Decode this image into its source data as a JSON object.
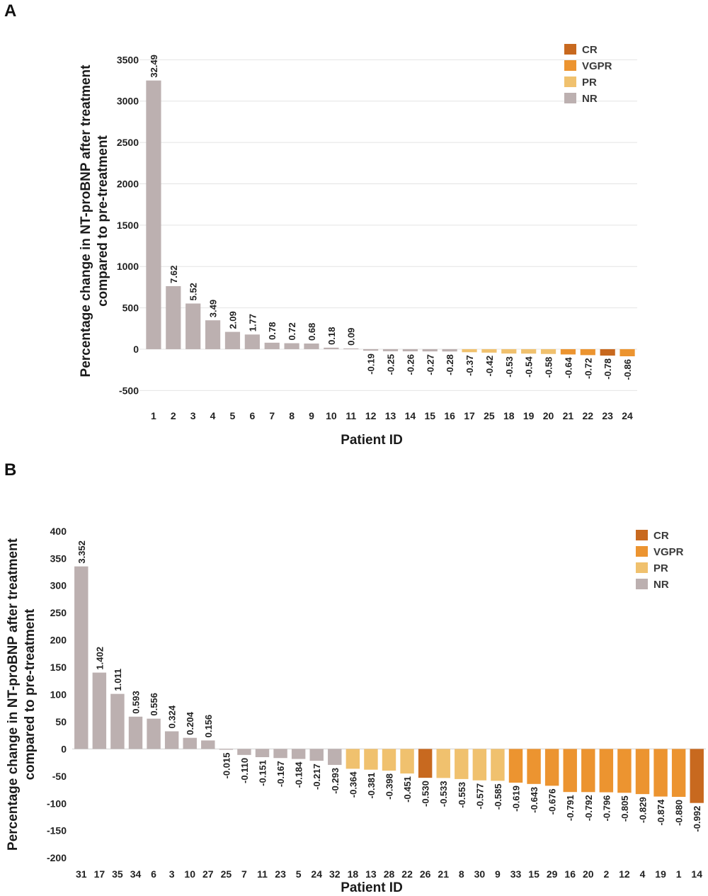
{
  "panels": [
    {
      "letter": "A"
    },
    {
      "letter": "B"
    }
  ],
  "colors": {
    "CR": "#c8691f",
    "VGPR": "#ec9430",
    "PR": "#f0c16e",
    "NR": "#bcb0b0"
  },
  "chart_data": [
    {
      "type": "bar",
      "ylabel": "Percentage change in NT-proBNP after treatment compared to pre-treatment",
      "ylabel_lines": [
        "Percentage change in NT-proBNP after treatment",
        "compared to pre-treatment"
      ],
      "xlabel": "Patient ID",
      "ylim": [
        -600,
        3700
      ],
      "yticks": [
        -500,
        0,
        500,
        1000,
        1500,
        2000,
        2500,
        3000,
        3500
      ],
      "grid": true,
      "legend_position": "top-right",
      "legend": [
        "CR",
        "VGPR",
        "PR",
        "NR"
      ],
      "categories": [
        "1",
        "2",
        "3",
        "4",
        "5",
        "6",
        "7",
        "8",
        "9",
        "10",
        "11",
        "12",
        "13",
        "14",
        "15",
        "16",
        "17",
        "25",
        "18",
        "19",
        "20",
        "21",
        "22",
        "23",
        "24"
      ],
      "values": [
        3249,
        762,
        552,
        349,
        209,
        177,
        78,
        72,
        68,
        18,
        9,
        -19,
        -25,
        -26,
        -27,
        -28,
        -37,
        -42,
        -53,
        -54,
        -58,
        -64,
        -72,
        -78,
        -86
      ],
      "labels": [
        "32.49",
        "7.62",
        "5.52",
        "3.49",
        "2.09",
        "1.77",
        "0.78",
        "0.72",
        "0.68",
        "0.18",
        "0.09",
        "-0.19",
        "-0.25",
        "-0.26",
        "-0.27",
        "-0.28",
        "-0.37",
        "-0.42",
        "-0.53",
        "-0.54",
        "-0.58",
        "-0.64",
        "-0.72",
        "-0.78",
        "-0.86"
      ],
      "response": [
        "NR",
        "NR",
        "NR",
        "NR",
        "NR",
        "NR",
        "NR",
        "NR",
        "NR",
        "NR",
        "NR",
        "NR",
        "NR",
        "NR",
        "NR",
        "NR",
        "PR",
        "PR",
        "PR",
        "PR",
        "PR",
        "VGPR",
        "VGPR",
        "CR",
        "VGPR"
      ]
    },
    {
      "type": "bar",
      "ylabel": "Percentage change in NT-proBNP after treatment compared to pre-treatment",
      "ylabel_lines": [
        "Percentage change in NT-proBNP after treatment",
        "compared to pre-treatment"
      ],
      "xlabel": "Patient ID",
      "ylim": [
        -205,
        405
      ],
      "yticks": [
        -200,
        -150,
        -100,
        -50,
        0,
        50,
        100,
        150,
        200,
        250,
        300,
        350,
        400
      ],
      "grid": false,
      "legend_position": "top-right",
      "legend": [
        "CR",
        "VGPR",
        "PR",
        "NR"
      ],
      "categories": [
        "31",
        "17",
        "35",
        "34",
        "6",
        "3",
        "10",
        "27",
        "25",
        "7",
        "11",
        "23",
        "5",
        "24",
        "32",
        "18",
        "13",
        "28",
        "22",
        "26",
        "21",
        "8",
        "30",
        "9",
        "33",
        "15",
        "29",
        "16",
        "20",
        "2",
        "12",
        "4",
        "19",
        "1",
        "14"
      ],
      "values": [
        335.2,
        140.2,
        101.1,
        59.3,
        55.6,
        32.4,
        20.4,
        15.6,
        -1.5,
        -11.0,
        -15.1,
        -16.7,
        -18.4,
        -21.7,
        -29.3,
        -36.4,
        -38.1,
        -39.8,
        -45.1,
        -53.0,
        -53.3,
        -55.3,
        -57.7,
        -58.5,
        -61.9,
        -64.3,
        -67.6,
        -79.1,
        -79.2,
        -79.6,
        -80.5,
        -82.9,
        -87.4,
        -88.0,
        -99.2
      ],
      "labels": [
        "3.352",
        "1.402",
        "1.011",
        "0.593",
        "0.556",
        "0.324",
        "0.204",
        "0.156",
        "-0.015",
        "-0.110",
        "-0.151",
        "-0.167",
        "-0.184",
        "-0.217",
        "-0.293",
        "-0.364",
        "-0.381",
        "-0.398",
        "-0.451",
        "-0.530",
        "-0.533",
        "-0.553",
        "-0.577",
        "-0.585",
        "-0.619",
        "-0.643",
        "-0.676",
        "-0.791",
        "-0.792",
        "-0.796",
        "-0.805",
        "-0.829",
        "-0.874",
        "-0.880",
        "-0.992"
      ],
      "response": [
        "NR",
        "NR",
        "NR",
        "NR",
        "NR",
        "NR",
        "NR",
        "NR",
        "NR",
        "NR",
        "NR",
        "NR",
        "NR",
        "NR",
        "NR",
        "PR",
        "PR",
        "PR",
        "PR",
        "CR",
        "PR",
        "PR",
        "PR",
        "PR",
        "VGPR",
        "VGPR",
        "VGPR",
        "VGPR",
        "VGPR",
        "VGPR",
        "VGPR",
        "VGPR",
        "VGPR",
        "VGPR",
        "CR"
      ]
    }
  ]
}
